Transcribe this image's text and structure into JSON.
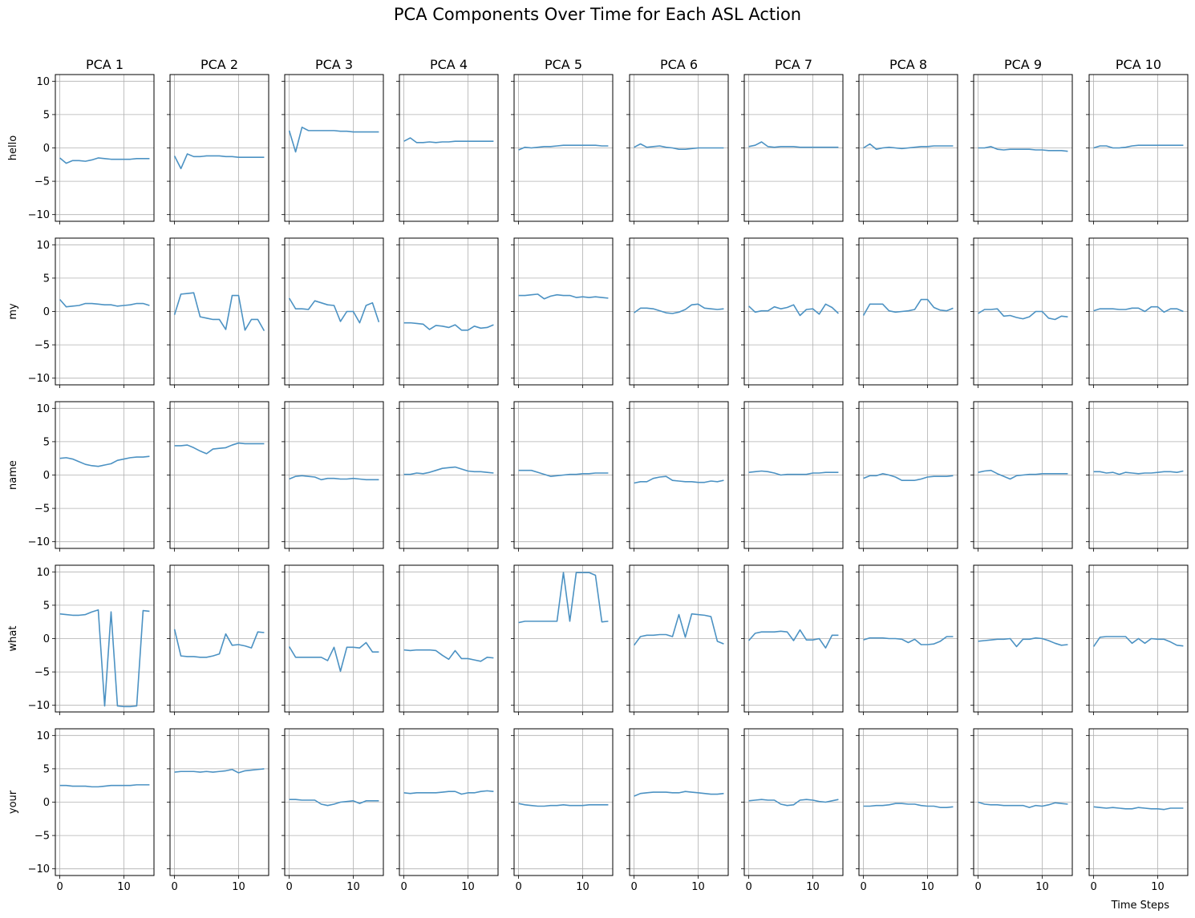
{
  "chart_data": {
    "type": "line",
    "title": "PCA Components Over Time for Each ASL Action",
    "xlabel": "Time Steps",
    "ylabel": "",
    "columns": [
      "PCA 1",
      "PCA 2",
      "PCA 3",
      "PCA 4",
      "PCA 5",
      "PCA 6",
      "PCA 7",
      "PCA 8",
      "PCA 9",
      "PCA 10"
    ],
    "rows": [
      "hello",
      "my",
      "name",
      "what",
      "your"
    ],
    "x": [
      0,
      1,
      2,
      3,
      4,
      5,
      6,
      7,
      8,
      9,
      10,
      11,
      12,
      13,
      14
    ],
    "xticks": [
      0,
      10
    ],
    "xlim": [
      -0.7,
      14.7
    ],
    "ylim": [
      -11,
      11
    ],
    "yticks": [
      10,
      5,
      0,
      -5,
      -10
    ],
    "grid": true,
    "line_color": "#4c92c3",
    "series": [
      [
        [
          -1.5,
          -2.3,
          -1.9,
          -1.9,
          -2.0,
          -1.8,
          -1.5,
          -1.6,
          -1.7,
          -1.7,
          -1.7,
          -1.7,
          -1.6,
          -1.6,
          -1.6
        ],
        [
          -1.2,
          -3.1,
          -0.9,
          -1.3,
          -1.3,
          -1.2,
          -1.2,
          -1.2,
          -1.3,
          -1.3,
          -1.4,
          -1.4,
          -1.4,
          -1.4,
          -1.4
        ],
        [
          2.6,
          -0.6,
          3.1,
          2.6,
          2.6,
          2.6,
          2.6,
          2.6,
          2.5,
          2.5,
          2.4,
          2.4,
          2.4,
          2.4,
          2.4
        ],
        [
          1.0,
          1.5,
          0.8,
          0.8,
          0.9,
          0.8,
          0.9,
          0.9,
          1.0,
          1.0,
          1.0,
          1.0,
          1.0,
          1.0,
          1.0
        ],
        [
          -0.3,
          0.1,
          0.0,
          0.1,
          0.2,
          0.2,
          0.3,
          0.4,
          0.4,
          0.4,
          0.4,
          0.4,
          0.4,
          0.3,
          0.3
        ],
        [
          0.1,
          0.6,
          0.1,
          0.2,
          0.3,
          0.1,
          0.0,
          -0.2,
          -0.2,
          -0.1,
          0.0,
          0.0,
          0.0,
          0.0,
          0.0
        ],
        [
          0.2,
          0.4,
          0.9,
          0.2,
          0.1,
          0.2,
          0.2,
          0.2,
          0.1,
          0.1,
          0.1,
          0.1,
          0.1,
          0.1,
          0.1
        ],
        [
          0.0,
          0.6,
          -0.2,
          0.0,
          0.1,
          0.0,
          -0.1,
          0.0,
          0.1,
          0.2,
          0.2,
          0.3,
          0.3,
          0.3,
          0.3
        ],
        [
          0.0,
          0.0,
          0.2,
          -0.2,
          -0.3,
          -0.2,
          -0.2,
          -0.2,
          -0.2,
          -0.3,
          -0.3,
          -0.4,
          -0.4,
          -0.4,
          -0.5
        ],
        [
          0.0,
          0.3,
          0.3,
          0.0,
          0.0,
          0.1,
          0.3,
          0.4,
          0.4,
          0.4,
          0.4,
          0.4,
          0.4,
          0.4,
          0.4
        ]
      ],
      [
        [
          1.8,
          0.7,
          0.8,
          0.9,
          1.2,
          1.2,
          1.1,
          1.0,
          1.0,
          0.8,
          0.9,
          1.0,
          1.2,
          1.2,
          0.9
        ],
        [
          -0.5,
          2.6,
          2.7,
          2.8,
          -0.8,
          -1.0,
          -1.2,
          -1.2,
          -2.7,
          2.4,
          2.4,
          -2.8,
          -1.2,
          -1.2,
          -2.9
        ],
        [
          2.0,
          0.4,
          0.4,
          0.3,
          1.6,
          1.3,
          1.0,
          0.9,
          -1.5,
          0.0,
          0.0,
          -1.7,
          0.9,
          1.3,
          -1.6
        ],
        [
          -1.7,
          -1.7,
          -1.8,
          -1.9,
          -2.7,
          -2.1,
          -2.2,
          -2.4,
          -2.0,
          -2.8,
          -2.8,
          -2.2,
          -2.5,
          -2.4,
          -2.0
        ],
        [
          2.4,
          2.4,
          2.5,
          2.6,
          1.9,
          2.3,
          2.5,
          2.4,
          2.4,
          2.1,
          2.2,
          2.1,
          2.2,
          2.1,
          2.0
        ],
        [
          -0.2,
          0.5,
          0.5,
          0.4,
          0.1,
          -0.2,
          -0.3,
          -0.1,
          0.3,
          1.0,
          1.1,
          0.5,
          0.4,
          0.3,
          0.4
        ],
        [
          0.8,
          -0.1,
          0.1,
          0.1,
          0.7,
          0.4,
          0.6,
          1.0,
          -0.6,
          0.3,
          0.4,
          -0.4,
          1.1,
          0.6,
          -0.3
        ],
        [
          -0.6,
          1.1,
          1.1,
          1.1,
          0.1,
          -0.1,
          0.0,
          0.1,
          0.3,
          1.8,
          1.8,
          0.6,
          0.2,
          0.1,
          0.5
        ],
        [
          -0.3,
          0.3,
          0.3,
          0.4,
          -0.7,
          -0.6,
          -0.9,
          -1.1,
          -0.8,
          0.0,
          0.0,
          -1.0,
          -1.2,
          -0.7,
          -0.8
        ],
        [
          0.1,
          0.4,
          0.4,
          0.4,
          0.3,
          0.3,
          0.5,
          0.5,
          0.0,
          0.7,
          0.7,
          -0.1,
          0.4,
          0.4,
          0.0
        ]
      ],
      [
        [
          2.5,
          2.6,
          2.4,
          2.0,
          1.6,
          1.4,
          1.3,
          1.5,
          1.7,
          2.2,
          2.4,
          2.6,
          2.7,
          2.7,
          2.8
        ],
        [
          4.4,
          4.4,
          4.5,
          4.1,
          3.6,
          3.2,
          3.9,
          4.0,
          4.1,
          4.5,
          4.8,
          4.7,
          4.7,
          4.7,
          4.7
        ],
        [
          -0.6,
          -0.2,
          -0.1,
          -0.2,
          -0.3,
          -0.7,
          -0.5,
          -0.5,
          -0.6,
          -0.6,
          -0.5,
          -0.6,
          -0.7,
          -0.7,
          -0.7
        ],
        [
          0.1,
          0.1,
          0.3,
          0.2,
          0.4,
          0.7,
          1.0,
          1.1,
          1.2,
          0.9,
          0.6,
          0.5,
          0.5,
          0.4,
          0.3
        ],
        [
          0.7,
          0.7,
          0.7,
          0.4,
          0.1,
          -0.2,
          -0.1,
          0.0,
          0.1,
          0.1,
          0.2,
          0.2,
          0.3,
          0.3,
          0.3
        ],
        [
          -1.2,
          -1.0,
          -1.0,
          -0.5,
          -0.3,
          -0.2,
          -0.8,
          -0.9,
          -1.0,
          -1.0,
          -1.1,
          -1.1,
          -0.9,
          -1.0,
          -0.8
        ],
        [
          0.4,
          0.5,
          0.6,
          0.5,
          0.3,
          0.0,
          0.1,
          0.1,
          0.1,
          0.1,
          0.3,
          0.3,
          0.4,
          0.4,
          0.4
        ],
        [
          -0.5,
          -0.1,
          -0.1,
          0.2,
          0.0,
          -0.3,
          -0.8,
          -0.8,
          -0.8,
          -0.6,
          -0.3,
          -0.2,
          -0.2,
          -0.2,
          -0.1
        ],
        [
          0.4,
          0.6,
          0.7,
          0.2,
          -0.2,
          -0.6,
          -0.1,
          0.0,
          0.1,
          0.1,
          0.2,
          0.2,
          0.2,
          0.2,
          0.2
        ],
        [
          0.5,
          0.5,
          0.3,
          0.4,
          0.1,
          0.4,
          0.3,
          0.2,
          0.3,
          0.3,
          0.4,
          0.5,
          0.5,
          0.4,
          0.6
        ]
      ],
      [
        [
          3.7,
          3.6,
          3.5,
          3.5,
          3.6,
          4.0,
          4.3,
          -10.1,
          4.0,
          -10.1,
          -10.2,
          -10.2,
          -10.1,
          4.2,
          4.1
        ],
        [
          1.4,
          -2.6,
          -2.7,
          -2.7,
          -2.8,
          -2.8,
          -2.6,
          -2.3,
          0.7,
          -1.0,
          -0.9,
          -1.1,
          -1.4,
          1.0,
          0.9
        ],
        [
          -1.2,
          -2.8,
          -2.8,
          -2.8,
          -2.8,
          -2.8,
          -3.3,
          -1.3,
          -4.9,
          -1.3,
          -1.3,
          -1.4,
          -0.6,
          -2.0,
          -2.0
        ],
        [
          -1.7,
          -1.8,
          -1.7,
          -1.7,
          -1.7,
          -1.8,
          -2.5,
          -3.1,
          -1.8,
          -3.0,
          -3.0,
          -3.2,
          -3.4,
          -2.8,
          -2.9
        ],
        [
          2.4,
          2.6,
          2.6,
          2.6,
          2.6,
          2.6,
          2.6,
          9.9,
          2.6,
          9.9,
          9.9,
          9.9,
          9.5,
          2.5,
          2.6
        ],
        [
          -1.0,
          0.3,
          0.5,
          0.5,
          0.6,
          0.6,
          0.3,
          3.6,
          0.2,
          3.7,
          3.6,
          3.5,
          3.3,
          -0.4,
          -0.8
        ],
        [
          -0.3,
          0.8,
          1.0,
          1.0,
          1.0,
          1.1,
          1.0,
          -0.3,
          1.3,
          -0.2,
          -0.2,
          0.0,
          -1.4,
          0.5,
          0.5
        ],
        [
          -0.2,
          0.1,
          0.1,
          0.1,
          0.0,
          0.0,
          -0.1,
          -0.6,
          -0.1,
          -0.9,
          -0.9,
          -0.8,
          -0.4,
          0.3,
          0.3
        ],
        [
          -0.4,
          -0.3,
          -0.2,
          -0.1,
          -0.1,
          0.0,
          -1.2,
          -0.1,
          -0.1,
          0.1,
          0.0,
          -0.3,
          -0.7,
          -1.0,
          -0.9
        ],
        [
          -1.2,
          0.2,
          0.3,
          0.3,
          0.3,
          0.3,
          -0.7,
          0.0,
          -0.7,
          0.0,
          -0.1,
          -0.1,
          -0.5,
          -1.0,
          -1.1
        ]
      ],
      [
        [
          2.5,
          2.5,
          2.4,
          2.4,
          2.4,
          2.3,
          2.3,
          2.4,
          2.5,
          2.5,
          2.5,
          2.5,
          2.6,
          2.6,
          2.6
        ],
        [
          4.5,
          4.6,
          4.6,
          4.6,
          4.5,
          4.6,
          4.5,
          4.6,
          4.7,
          4.9,
          4.4,
          4.7,
          4.8,
          4.9,
          5.0
        ],
        [
          0.4,
          0.4,
          0.3,
          0.3,
          0.3,
          -0.3,
          -0.5,
          -0.3,
          0.0,
          0.1,
          0.2,
          -0.2,
          0.2,
          0.2,
          0.2
        ],
        [
          1.4,
          1.3,
          1.4,
          1.4,
          1.4,
          1.4,
          1.5,
          1.6,
          1.6,
          1.2,
          1.4,
          1.4,
          1.6,
          1.7,
          1.6
        ],
        [
          -0.2,
          -0.4,
          -0.5,
          -0.6,
          -0.6,
          -0.5,
          -0.5,
          -0.4,
          -0.5,
          -0.5,
          -0.5,
          -0.4,
          -0.4,
          -0.4,
          -0.4
        ],
        [
          0.9,
          1.3,
          1.4,
          1.5,
          1.5,
          1.5,
          1.4,
          1.4,
          1.6,
          1.5,
          1.4,
          1.3,
          1.2,
          1.2,
          1.3
        ],
        [
          0.2,
          0.3,
          0.4,
          0.3,
          0.3,
          -0.3,
          -0.5,
          -0.4,
          0.3,
          0.4,
          0.3,
          0.1,
          0.0,
          0.2,
          0.4
        ],
        [
          -0.6,
          -0.6,
          -0.5,
          -0.5,
          -0.4,
          -0.2,
          -0.2,
          -0.3,
          -0.3,
          -0.5,
          -0.6,
          -0.6,
          -0.8,
          -0.8,
          -0.7
        ],
        [
          0.0,
          -0.3,
          -0.4,
          -0.4,
          -0.5,
          -0.5,
          -0.5,
          -0.5,
          -0.8,
          -0.5,
          -0.6,
          -0.4,
          -0.1,
          -0.2,
          -0.3
        ],
        [
          -0.7,
          -0.8,
          -0.9,
          -0.8,
          -0.9,
          -1.0,
          -1.0,
          -0.8,
          -0.9,
          -1.0,
          -1.0,
          -1.1,
          -0.9,
          -0.9,
          -0.9
        ]
      ]
    ]
  }
}
